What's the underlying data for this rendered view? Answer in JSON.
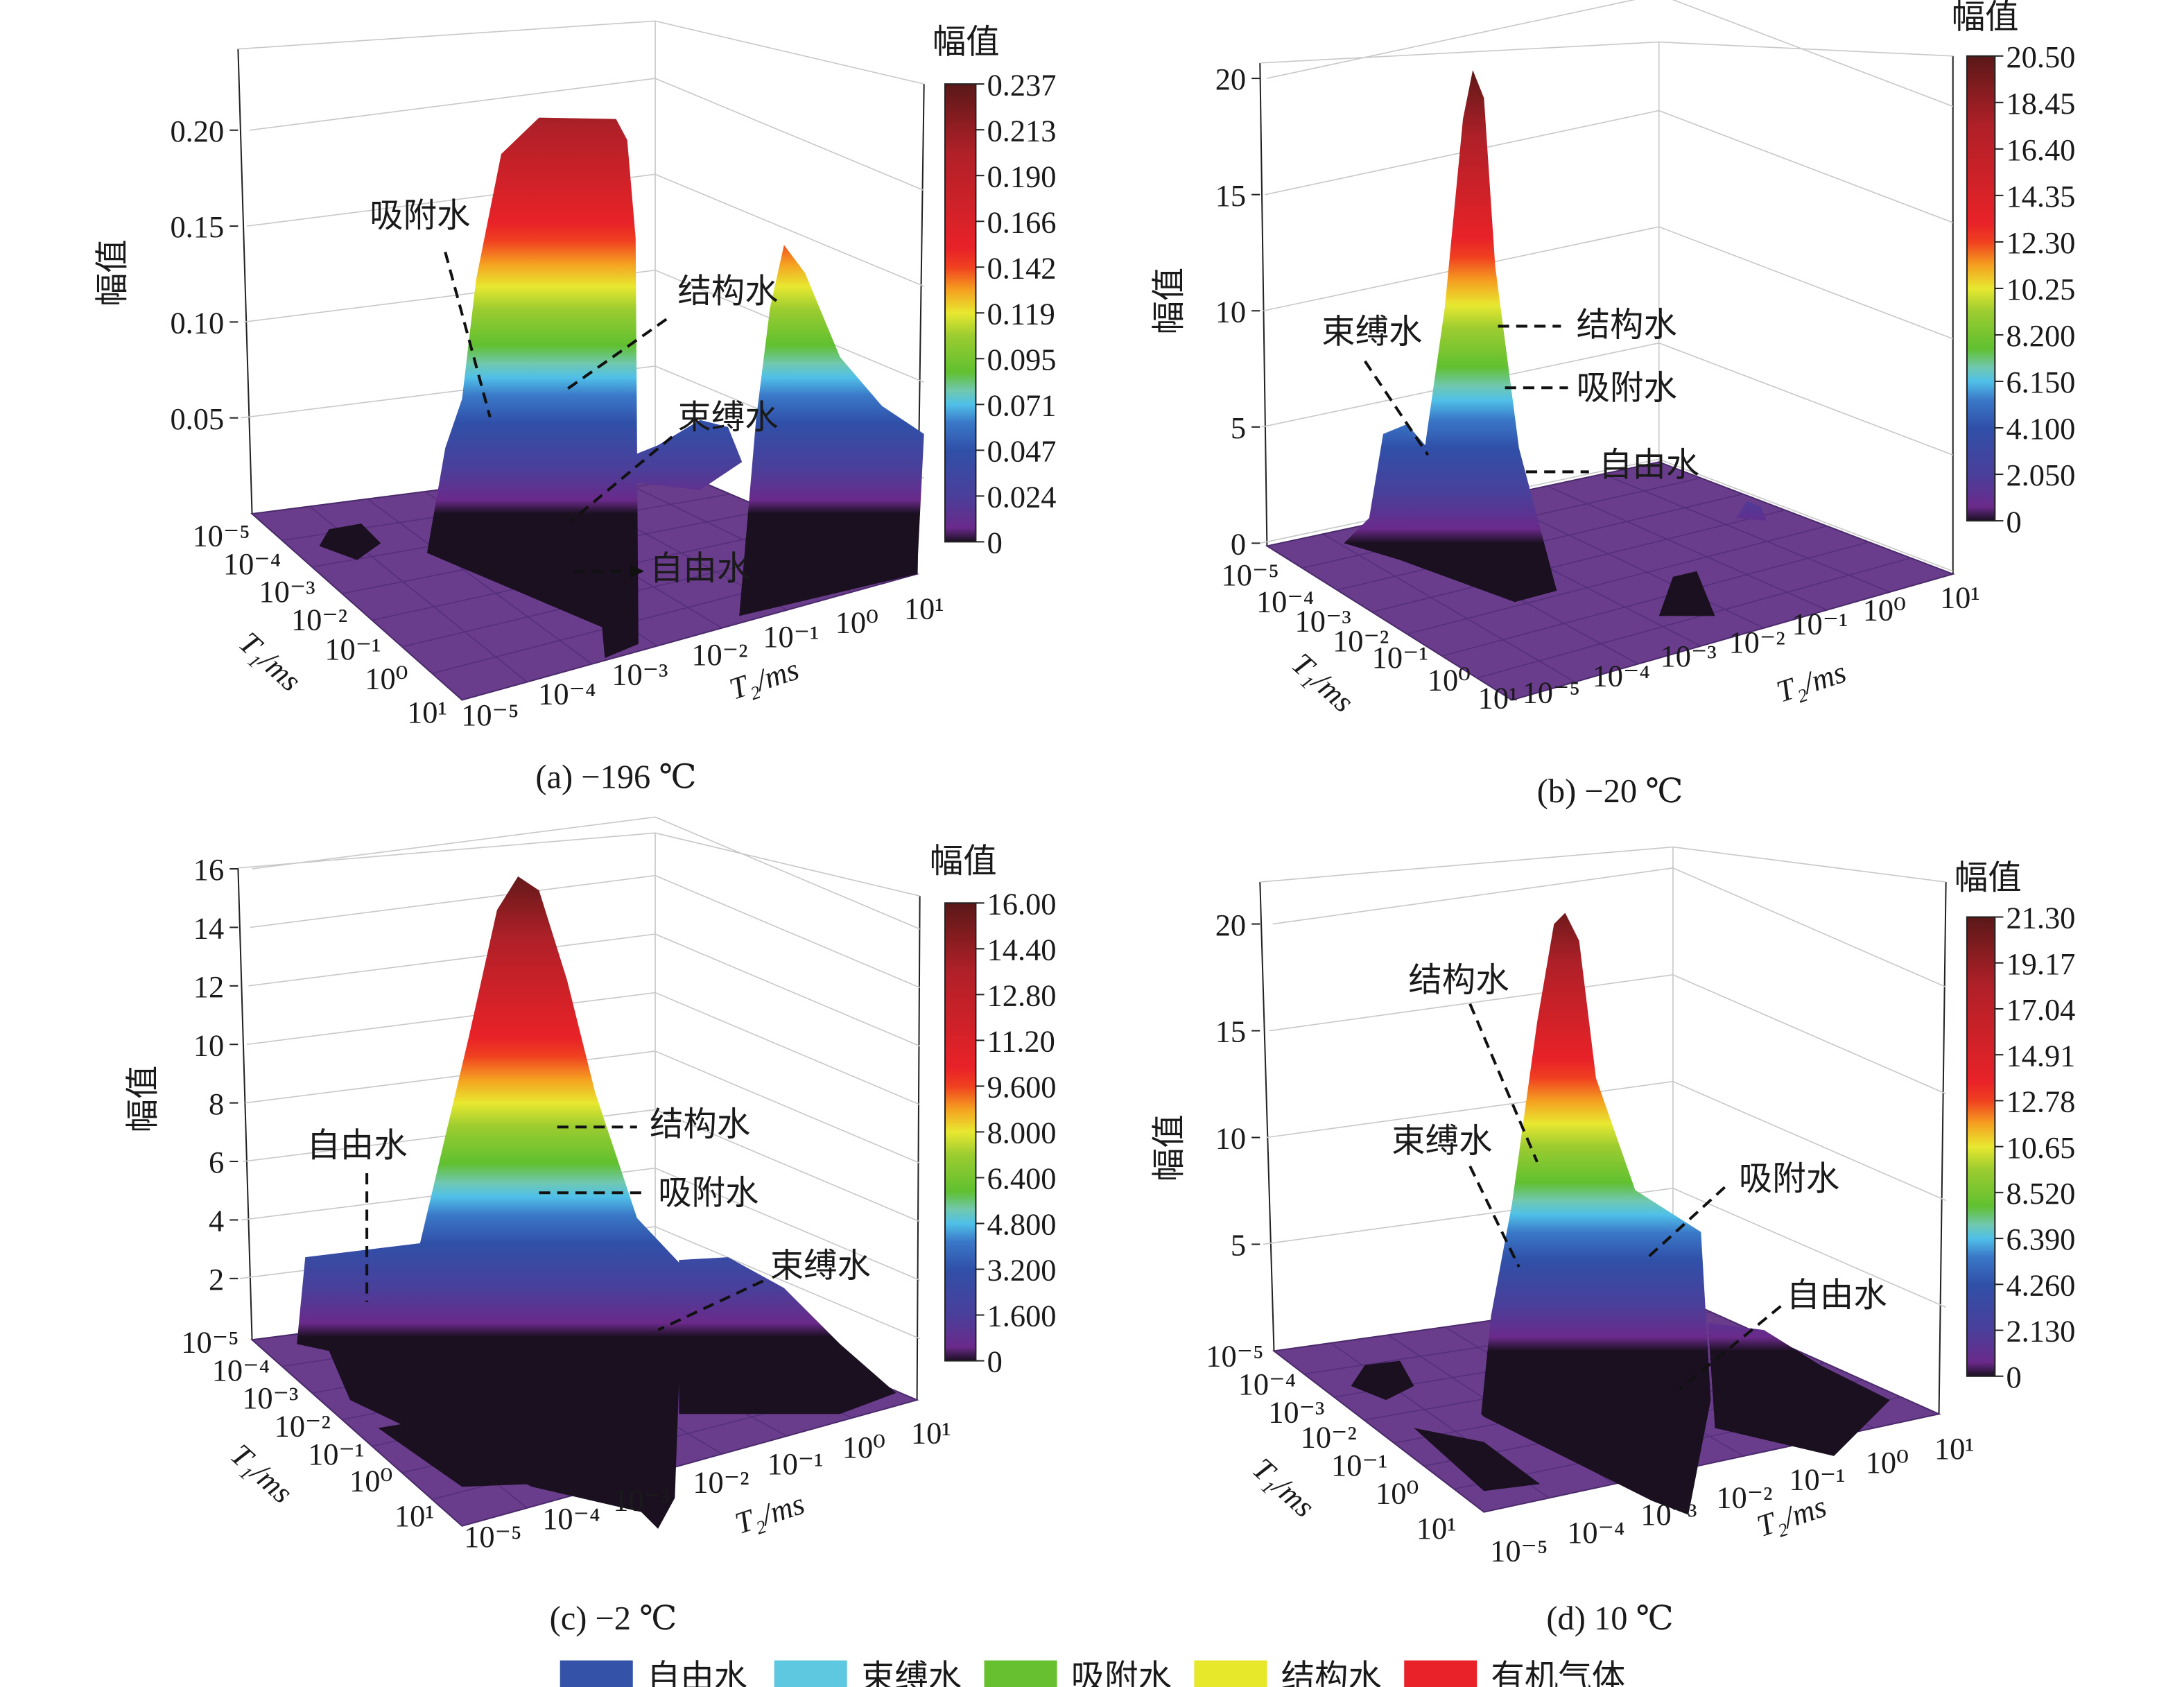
{
  "chart_data": [
    {
      "type": "surface",
      "caption": "(a) −196 ℃",
      "zlabel": "幅值",
      "xlabel": "T₂/ms",
      "ylabel": "T₁/ms",
      "z_ticks": [
        "0.05",
        "0.10",
        "0.15",
        "0.20"
      ],
      "z_tick_values": [
        0.05,
        0.1,
        0.15,
        0.2
      ],
      "t1_ticks": [
        "10⁻⁵",
        "10⁻⁴",
        "10⁻³",
        "10⁻²",
        "10⁻¹",
        "10⁰",
        "10¹"
      ],
      "t2_ticks": [
        "10⁻⁵",
        "10⁻⁴",
        "10⁻³",
        "10⁻²",
        "10⁻¹",
        "10⁰",
        "10¹"
      ],
      "colorbar": {
        "title": "幅值",
        "range": [
          0,
          0.237
        ],
        "ticks": [
          "0.237",
          "0.213",
          "0.190",
          "0.166",
          "0.142",
          "0.119",
          "0.095",
          "0.071",
          "0.047",
          "0.024",
          "0"
        ]
      },
      "peak_amplitude": 0.21,
      "annotations": [
        "吸附水",
        "结构水",
        "束缚水",
        "自由水"
      ]
    },
    {
      "type": "surface",
      "caption": "(b) −20 ℃",
      "zlabel": "幅值",
      "xlabel": "T₂/ms",
      "ylabel": "T₁/ms",
      "z_ticks": [
        "0",
        "5",
        "10",
        "15",
        "20"
      ],
      "z_tick_values": [
        0,
        5,
        10,
        15,
        20
      ],
      "t1_ticks": [
        "10⁻⁵",
        "10⁻⁴",
        "10⁻³",
        "10⁻²",
        "10⁻¹",
        "10⁰",
        "10¹"
      ],
      "t2_ticks": [
        "10⁻⁵",
        "10⁻⁴",
        "10⁻³",
        "10⁻²",
        "10⁻¹",
        "10⁰",
        "10¹"
      ],
      "colorbar": {
        "title": "幅值",
        "range": [
          0,
          20.5
        ],
        "ticks": [
          "20.50",
          "18.45",
          "16.40",
          "14.35",
          "12.30",
          "10.25",
          "8.200",
          "6.150",
          "4.100",
          "2.050",
          "0"
        ]
      },
      "peak_amplitude": 20.5,
      "annotations": [
        "束缚水",
        "结构水",
        "吸附水",
        "自由水"
      ]
    },
    {
      "type": "surface",
      "caption": "(c) −2 ℃",
      "zlabel": "幅值",
      "xlabel": "T₂/ms",
      "ylabel": "T₁/ms",
      "z_ticks": [
        "2",
        "4",
        "6",
        "8",
        "10",
        "12",
        "14",
        "16"
      ],
      "z_tick_values": [
        2,
        4,
        6,
        8,
        10,
        12,
        14,
        16
      ],
      "t1_ticks": [
        "10⁻⁵",
        "10⁻⁴",
        "10⁻³",
        "10⁻²",
        "10⁻¹",
        "10⁰",
        "10¹"
      ],
      "t2_ticks": [
        "10⁻⁵",
        "10⁻⁴",
        "10⁻³",
        "10⁻²",
        "10⁻¹",
        "10⁰",
        "10¹"
      ],
      "colorbar": {
        "title": "幅值",
        "range": [
          0,
          16.0
        ],
        "ticks": [
          "16.00",
          "14.40",
          "12.80",
          "11.20",
          "9.600",
          "8.000",
          "6.400",
          "4.800",
          "3.200",
          "1.600",
          "0"
        ]
      },
      "peak_amplitude": 15.7,
      "annotations": [
        "自由水",
        "结构水",
        "吸附水",
        "束缚水"
      ]
    },
    {
      "type": "surface",
      "caption": "(d) 10 ℃",
      "zlabel": "幅值",
      "xlabel": "T₂/ms",
      "ylabel": "T₁/ms",
      "z_ticks": [
        "5",
        "10",
        "15",
        "20"
      ],
      "z_tick_values": [
        5,
        10,
        15,
        20
      ],
      "t1_ticks": [
        "10⁻⁵",
        "10⁻⁴",
        "10⁻³",
        "10⁻²",
        "10⁻¹",
        "10⁰",
        "10¹"
      ],
      "t2_ticks": [
        "10⁻⁵",
        "10⁻⁴",
        "10⁻³",
        "10⁻²",
        "10⁻¹",
        "10⁰",
        "10¹"
      ],
      "colorbar": {
        "title": "幅值",
        "range": [
          0,
          21.3
        ],
        "ticks": [
          "21.30",
          "19.17",
          "17.04",
          "14.91",
          "12.78",
          "10.65",
          "8.520",
          "6.390",
          "4.260",
          "2.130",
          "0"
        ]
      },
      "peak_amplitude": 20.5,
      "annotations": [
        "结构水",
        "束缚水",
        "吸附水",
        "自由水"
      ]
    }
  ],
  "legend": [
    {
      "label": "自由水",
      "color": "#3352a8"
    },
    {
      "label": "束缚水",
      "color": "#5ec8e0"
    },
    {
      "label": "吸附水",
      "color": "#66c030"
    },
    {
      "label": "结构水",
      "color": "#e8e82a"
    },
    {
      "label": "有机气体",
      "color": "#e82228"
    }
  ],
  "colormap": [
    "#1a1020",
    "#6a2a8a",
    "#4a3f9a",
    "#3050a8",
    "#3a78c8",
    "#50c0e8",
    "#70c8b0",
    "#60c030",
    "#9ccc30",
    "#e8e830",
    "#f5a020",
    "#f04020",
    "#e82228",
    "#b02028",
    "#5a1818"
  ]
}
